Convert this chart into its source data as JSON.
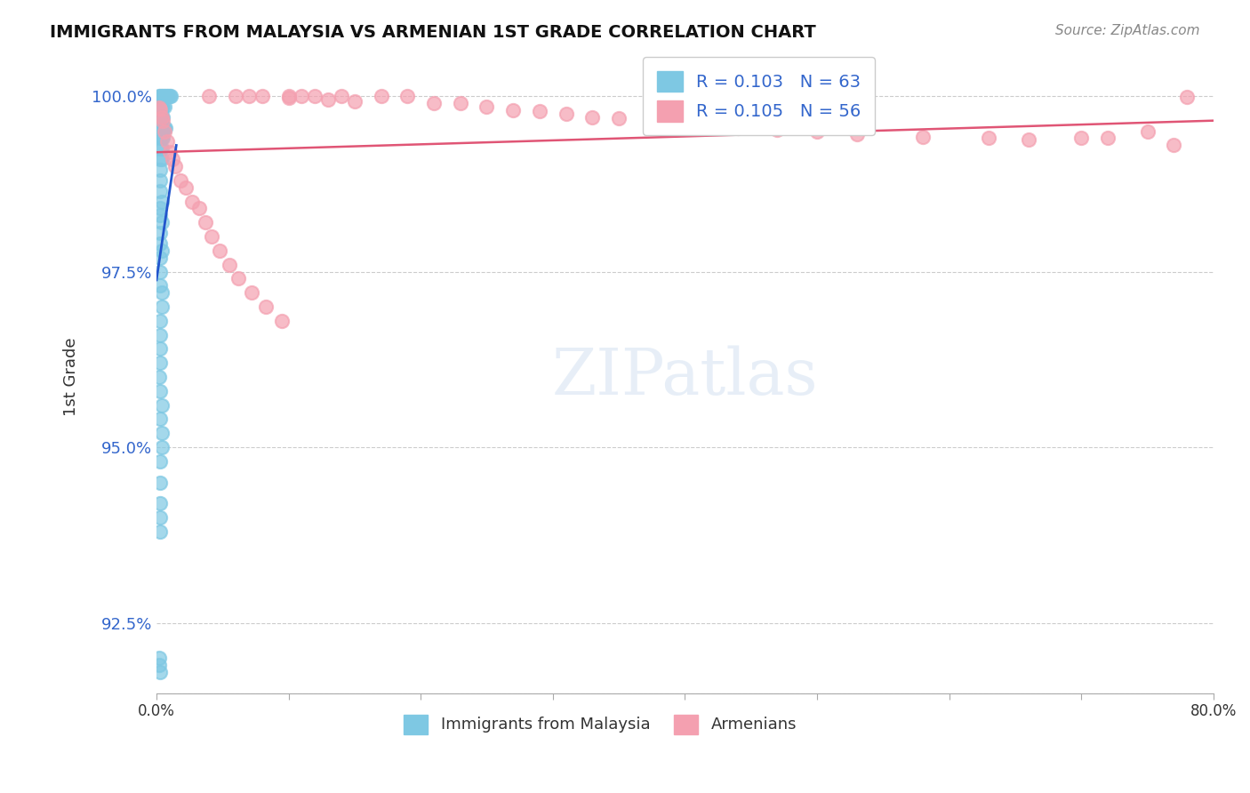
{
  "title": "IMMIGRANTS FROM MALAYSIA VS ARMENIAN 1ST GRADE CORRELATION CHART",
  "source": "Source: ZipAtlas.com",
  "xlabel_bottom": "",
  "ylabel": "1st Grade",
  "xlim": [
    0.0,
    0.8
  ],
  "ylim": [
    0.915,
    1.005
  ],
  "xtick_labels": [
    "0.0%",
    "",
    "",
    "",
    "",
    "",
    "",
    "",
    "80.0%"
  ],
  "ytick_labels": [
    "92.5%",
    "95.0%",
    "97.5%",
    "100.0%"
  ],
  "ytick_values": [
    0.925,
    0.95,
    0.975,
    1.0
  ],
  "R_malaysia": 0.103,
  "N_malaysia": 63,
  "R_armenian": 0.105,
  "N_armenian": 56,
  "malaysia_color": "#7ec8e3",
  "armenian_color": "#f4a0b0",
  "malaysia_line_color": "#2255cc",
  "armenian_line_color": "#e05575",
  "watermark": "ZIPatlas",
  "malaysia_x": [
    0.002,
    0.003,
    0.004,
    0.005,
    0.006,
    0.007,
    0.008,
    0.009,
    0.01,
    0.011,
    0.002,
    0.003,
    0.004,
    0.005,
    0.006,
    0.003,
    0.004,
    0.005,
    0.003,
    0.004,
    0.005,
    0.006,
    0.007,
    0.003,
    0.004,
    0.005,
    0.003,
    0.004,
    0.003,
    0.004,
    0.003,
    0.003,
    0.003,
    0.004,
    0.003,
    0.003,
    0.004,
    0.003,
    0.003,
    0.004,
    0.003,
    0.003,
    0.003,
    0.004,
    0.004,
    0.003,
    0.003,
    0.003,
    0.003,
    0.002,
    0.003,
    0.004,
    0.003,
    0.004,
    0.004,
    0.003,
    0.003,
    0.003,
    0.003,
    0.003,
    0.002,
    0.002,
    0.003
  ],
  "malaysia_y": [
    1.0,
    1.0,
    1.0,
    1.0,
    1.0,
    1.0,
    1.0,
    1.0,
    1.0,
    1.0,
    0.9985,
    0.9985,
    0.9985,
    0.9985,
    0.9985,
    0.997,
    0.997,
    0.997,
    0.9955,
    0.9955,
    0.9955,
    0.9955,
    0.9955,
    0.994,
    0.994,
    0.994,
    0.9925,
    0.9925,
    0.991,
    0.991,
    0.9895,
    0.988,
    0.9865,
    0.985,
    0.984,
    0.983,
    0.982,
    0.9805,
    0.979,
    0.978,
    0.977,
    0.975,
    0.973,
    0.972,
    0.97,
    0.968,
    0.966,
    0.964,
    0.962,
    0.96,
    0.958,
    0.956,
    0.954,
    0.952,
    0.95,
    0.948,
    0.945,
    0.942,
    0.94,
    0.938,
    0.92,
    0.919,
    0.918
  ],
  "armenian_x": [
    0.04,
    0.06,
    0.07,
    0.08,
    0.1,
    0.1,
    0.11,
    0.12,
    0.13,
    0.14,
    0.15,
    0.17,
    0.19,
    0.21,
    0.23,
    0.25,
    0.27,
    0.29,
    0.31,
    0.33,
    0.35,
    0.38,
    0.41,
    0.44,
    0.47,
    0.5,
    0.53,
    0.58,
    0.63,
    0.66,
    0.7,
    0.72,
    0.75,
    0.77,
    0.78,
    0.002,
    0.003,
    0.004,
    0.005,
    0.006,
    0.008,
    0.01,
    0.012,
    0.014,
    0.018,
    0.022,
    0.027,
    0.032,
    0.037,
    0.042,
    0.048,
    0.055,
    0.062,
    0.072,
    0.083,
    0.095
  ],
  "armenian_y": [
    1.0,
    1.0,
    1.0,
    1.0,
    1.0,
    0.9998,
    1.0,
    1.0,
    0.9995,
    1.0,
    0.9993,
    1.0,
    1.0,
    0.999,
    0.999,
    0.9985,
    0.998,
    0.9978,
    0.9975,
    0.997,
    0.9968,
    0.996,
    0.9957,
    0.9955,
    0.9952,
    0.995,
    0.9945,
    0.9942,
    0.994,
    0.9938,
    0.994,
    0.994,
    0.995,
    0.993,
    0.9999,
    0.9983,
    0.9981,
    0.997,
    0.9965,
    0.995,
    0.9935,
    0.992,
    0.991,
    0.99,
    0.988,
    0.987,
    0.985,
    0.984,
    0.982,
    0.98,
    0.978,
    0.976,
    0.974,
    0.972,
    0.97,
    0.968
  ]
}
